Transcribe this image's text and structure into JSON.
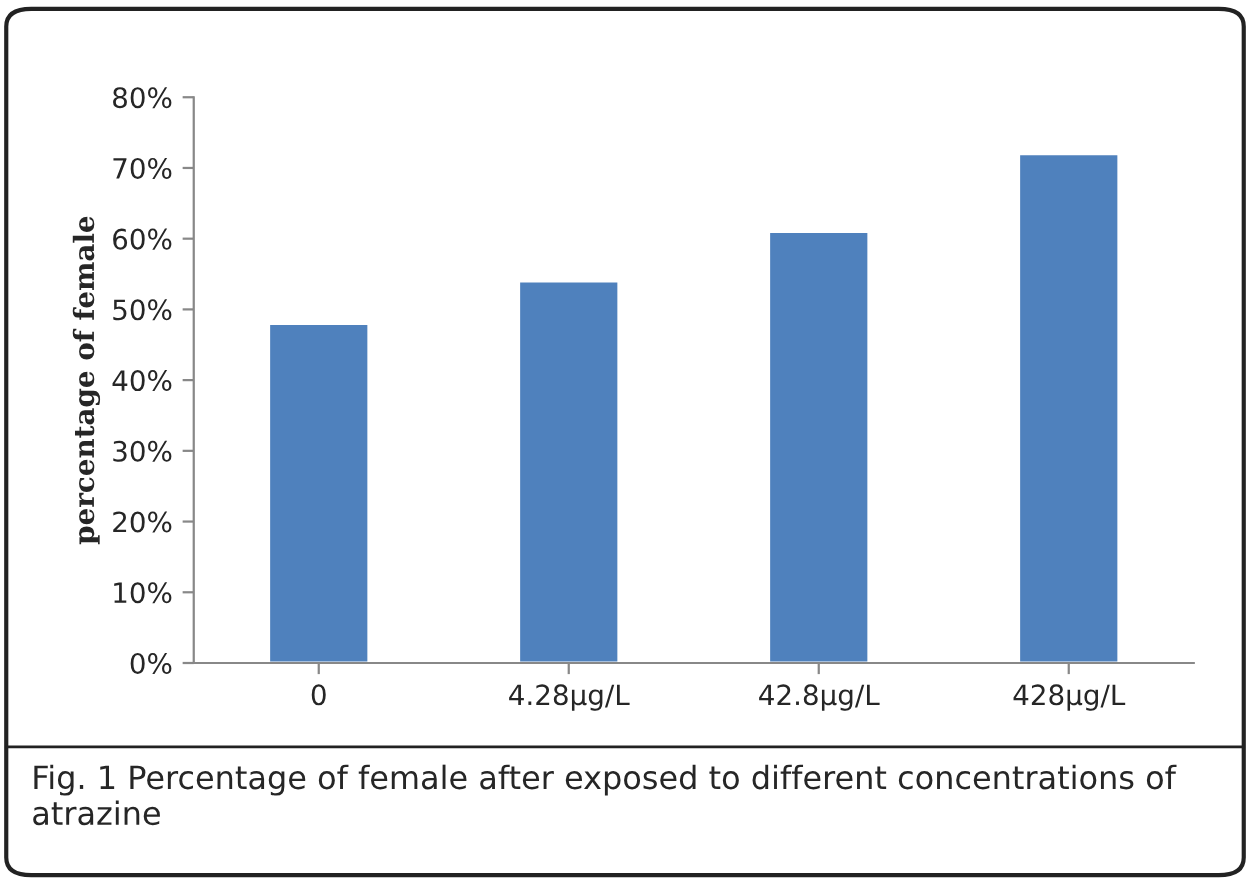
{
  "chart_data": {
    "type": "bar",
    "ylabel": "percentage of female",
    "categories": [
      "0",
      "4.28μg/L",
      "42.8μg/L",
      "428μg/L"
    ],
    "values": [
      48,
      54,
      61,
      72
    ],
    "color": "#4f81bd",
    "ylim": [
      0,
      80
    ],
    "yticks": [
      {
        "value": 0,
        "label": "0%"
      },
      {
        "value": 10,
        "label": "10%"
      },
      {
        "value": 20,
        "label": "20%"
      },
      {
        "value": 30,
        "label": "30%"
      },
      {
        "value": 40,
        "label": "40%"
      },
      {
        "value": 50,
        "label": "50%"
      },
      {
        "value": 60,
        "label": "60%"
      },
      {
        "value": 70,
        "label": "70%"
      },
      {
        "value": 80,
        "label": "80%"
      }
    ],
    "grid": false,
    "annotations": [
      "Fig. 1 Percentage of female after exposed to different concentrations of atrazine"
    ]
  }
}
